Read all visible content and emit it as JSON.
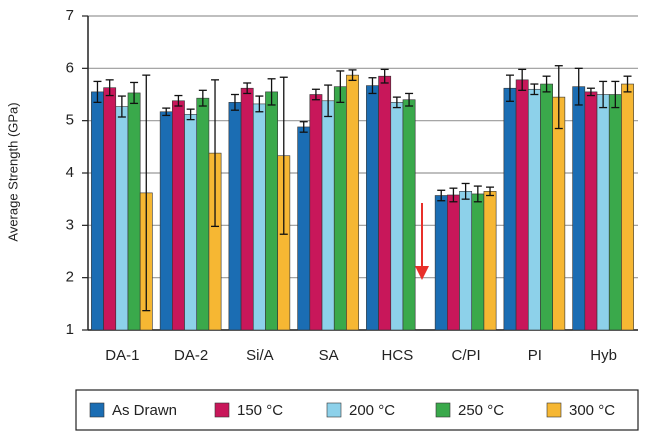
{
  "chart_data": {
    "type": "bar",
    "y_label": "Average Strength (GPa)",
    "categories": [
      "DA-1",
      "DA-2",
      "Si/A",
      "SA",
      "HCS",
      "C/PI",
      "PI",
      "Hyb"
    ],
    "series": [
      {
        "name": "As Drawn",
        "color": "#1b6db3",
        "values": [
          5.55,
          5.17,
          5.35,
          4.88,
          5.67,
          3.57,
          5.62,
          5.65
        ],
        "errors": [
          0.2,
          0.07,
          0.15,
          0.1,
          0.15,
          0.1,
          0.25,
          0.35
        ]
      },
      {
        "name": "150 °C",
        "color": "#c8175a",
        "values": [
          5.63,
          5.38,
          5.62,
          5.5,
          5.85,
          3.58,
          5.78,
          5.55
        ],
        "errors": [
          0.15,
          0.1,
          0.1,
          0.1,
          0.13,
          0.13,
          0.2,
          0.07
        ]
      },
      {
        "name": "200 °C",
        "color": "#8dd1ea",
        "values": [
          5.27,
          5.12,
          5.32,
          5.38,
          5.35,
          3.65,
          5.6,
          5.5
        ],
        "errors": [
          0.2,
          0.1,
          0.15,
          0.3,
          0.1,
          0.15,
          0.1,
          0.25
        ]
      },
      {
        "name": "250 °C",
        "color": "#3aa94b",
        "values": [
          5.53,
          5.43,
          5.55,
          5.65,
          5.4,
          3.6,
          5.7,
          5.5
        ],
        "errors": [
          0.2,
          0.15,
          0.25,
          0.3,
          0.12,
          0.15,
          0.15,
          0.25
        ]
      },
      {
        "name": "300 °C",
        "color": "#f6b733",
        "values": [
          3.62,
          4.38,
          4.33,
          5.87,
          null,
          3.65,
          5.45,
          5.7
        ],
        "errors": [
          2.25,
          1.4,
          1.5,
          0.1,
          null,
          0.08,
          0.6,
          0.15
        ]
      }
    ],
    "ylim": [
      1,
      7
    ],
    "yticks": [
      1,
      2,
      3,
      4,
      5,
      6,
      7
    ],
    "grid": true
  }
}
